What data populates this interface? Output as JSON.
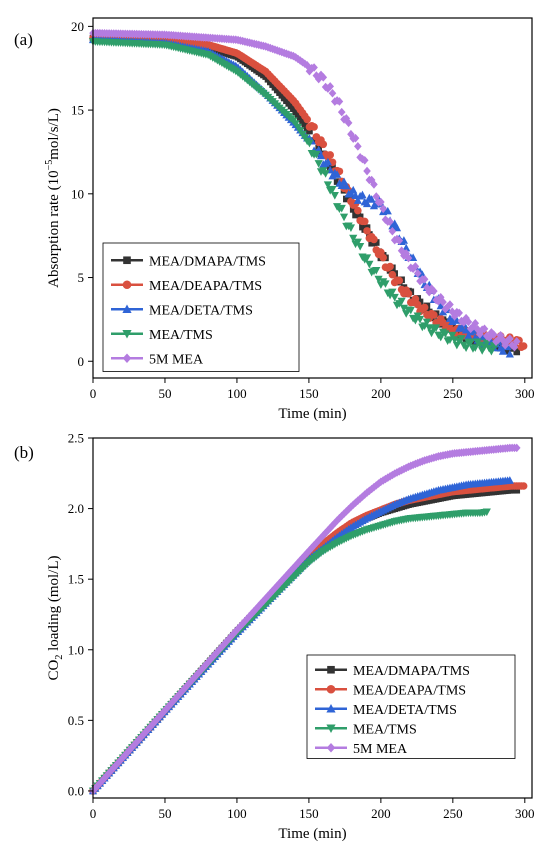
{
  "colors": {
    "MEA/DMAPA/TMS": "#333333",
    "MEA/DEAPA/TMS": "#d9503f",
    "MEA/DETA/TMS": "#2f64d6",
    "MEA/TMS": "#2f9e6a",
    "5M MEA": "#b47ce0"
  },
  "markers": {
    "MEA/DMAPA/TMS": "square",
    "MEA/DEAPA/TMS": "circle",
    "MEA/DETA/TMS": "triangle-up",
    "MEA/TMS": "triangle-down",
    "5M MEA": "diamond"
  },
  "chart_data": [
    {
      "type": "scatter",
      "panel_label": "(a)",
      "xlabel": "Time (min)",
      "ylabel_parts": [
        "Absorption rate (10",
        "−5",
        "mol/s/L)"
      ],
      "xlim": [
        0,
        305
      ],
      "ylim": [
        -1,
        20.5
      ],
      "xticks": [
        0,
        50,
        100,
        150,
        200,
        250,
        300
      ],
      "yticks": [
        0,
        5,
        10,
        15,
        20
      ],
      "legend_position": "bottom-left",
      "series": [
        {
          "name": "MEA/DMAPA/TMS",
          "x": [
            0,
            50,
            80,
            100,
            120,
            140,
            150,
            160,
            170,
            180,
            190,
            200,
            210,
            220,
            230,
            240,
            250,
            260,
            270,
            280,
            290,
            295
          ],
          "y": [
            19.3,
            19.0,
            18.7,
            18.2,
            17.0,
            15.0,
            13.7,
            12.3,
            10.9,
            9.3,
            7.8,
            6.4,
            5.1,
            4.0,
            3.2,
            2.5,
            1.9,
            1.5,
            1.2,
            1.0,
            0.8,
            0.8
          ]
        },
        {
          "name": "MEA/DEAPA/TMS",
          "x": [
            0,
            50,
            80,
            100,
            120,
            140,
            150,
            160,
            170,
            180,
            190,
            200,
            210,
            220,
            230,
            240,
            250,
            260,
            270,
            280,
            290,
            300
          ],
          "y": [
            19.3,
            19.1,
            18.9,
            18.4,
            17.3,
            15.5,
            14.3,
            12.8,
            11.3,
            9.6,
            7.9,
            6.3,
            4.9,
            3.8,
            3.0,
            2.4,
            1.9,
            1.6,
            1.4,
            1.3,
            1.2,
            1.0
          ]
        },
        {
          "name": "MEA/DETA/TMS",
          "x": [
            0,
            50,
            80,
            100,
            120,
            140,
            150,
            160,
            170,
            180,
            190,
            200,
            210,
            220,
            230,
            240,
            250,
            260,
            270,
            280,
            290
          ],
          "y": [
            19.2,
            19.0,
            18.5,
            17.6,
            16.0,
            14.2,
            13.2,
            12.0,
            10.9,
            10.0,
            9.6,
            9.4,
            8.0,
            6.3,
            4.8,
            3.5,
            2.5,
            1.8,
            1.3,
            1.0,
            0.6
          ]
        },
        {
          "name": "MEA/TMS",
          "x": [
            0,
            50,
            80,
            100,
            120,
            140,
            150,
            160,
            170,
            180,
            190,
            200,
            210,
            220,
            230,
            240,
            250,
            260,
            270,
            280
          ],
          "y": [
            19.1,
            18.9,
            18.3,
            17.3,
            15.9,
            14.3,
            13.0,
            11.3,
            9.4,
            7.6,
            6.0,
            4.8,
            3.7,
            2.9,
            2.2,
            1.7,
            1.3,
            1.0,
            0.9,
            0.8
          ]
        },
        {
          "name": "5M MEA",
          "x": [
            0,
            50,
            100,
            120,
            140,
            150,
            160,
            170,
            180,
            190,
            200,
            210,
            220,
            230,
            240,
            250,
            260,
            270,
            280,
            290,
            295
          ],
          "y": [
            19.6,
            19.5,
            19.2,
            18.8,
            18.2,
            17.6,
            16.8,
            15.5,
            13.6,
            11.5,
            9.3,
            7.4,
            5.9,
            4.7,
            3.7,
            3.0,
            2.3,
            1.8,
            1.4,
            1.1,
            1.0
          ]
        }
      ]
    },
    {
      "type": "scatter",
      "panel_label": "(b)",
      "xlabel": "Time (min)",
      "ylabel_parts": [
        "CO",
        "2",
        " loading (mol/L)"
      ],
      "xlim": [
        0,
        305
      ],
      "ylim": [
        -0.05,
        2.5
      ],
      "xticks": [
        0,
        50,
        100,
        150,
        200,
        250,
        300
      ],
      "yticks": [
        0.0,
        0.5,
        1.0,
        1.5,
        2.0,
        2.5
      ],
      "ytick_labels": [
        "0.0",
        "0.5",
        "1.0",
        "1.5",
        "2.0",
        "2.5"
      ],
      "legend_position": "bottom-right",
      "series": [
        {
          "name": "MEA/DMAPA/TMS",
          "x": [
            0,
            50,
            100,
            150,
            160,
            170,
            180,
            190,
            200,
            210,
            220,
            230,
            240,
            250,
            260,
            270,
            280,
            290,
            295
          ],
          "y": [
            0.0,
            0.565,
            1.13,
            1.66,
            1.74,
            1.82,
            1.88,
            1.93,
            1.97,
            2.0,
            2.03,
            2.05,
            2.07,
            2.09,
            2.1,
            2.11,
            2.12,
            2.13,
            2.13
          ]
        },
        {
          "name": "MEA/DEAPA/TMS",
          "x": [
            0,
            50,
            100,
            150,
            160,
            170,
            180,
            190,
            200,
            210,
            220,
            230,
            240,
            250,
            260,
            270,
            280,
            290,
            300
          ],
          "y": [
            0.0,
            0.565,
            1.13,
            1.67,
            1.75,
            1.83,
            1.9,
            1.95,
            1.99,
            2.03,
            2.06,
            2.08,
            2.1,
            2.12,
            2.13,
            2.14,
            2.15,
            2.16,
            2.16
          ]
        },
        {
          "name": "MEA/DETA/TMS",
          "x": [
            0,
            50,
            100,
            150,
            160,
            170,
            180,
            190,
            200,
            210,
            220,
            230,
            240,
            250,
            260,
            270,
            280,
            290
          ],
          "y": [
            0.0,
            0.565,
            1.12,
            1.64,
            1.72,
            1.8,
            1.87,
            1.93,
            1.98,
            2.03,
            2.07,
            2.1,
            2.13,
            2.15,
            2.17,
            2.18,
            2.19,
            2.2
          ]
        },
        {
          "name": "MEA/TMS",
          "x": [
            0,
            50,
            100,
            150,
            160,
            170,
            180,
            190,
            200,
            210,
            220,
            230,
            240,
            250,
            260,
            270,
            275
          ],
          "y": [
            0.0,
            0.565,
            1.12,
            1.62,
            1.7,
            1.76,
            1.81,
            1.85,
            1.88,
            1.91,
            1.93,
            1.94,
            1.95,
            1.96,
            1.97,
            1.97,
            1.98
          ]
        },
        {
          "name": "5M MEA",
          "x": [
            0,
            50,
            100,
            150,
            160,
            170,
            180,
            190,
            200,
            210,
            220,
            230,
            240,
            250,
            260,
            270,
            280,
            290,
            295
          ],
          "y": [
            0.0,
            0.57,
            1.14,
            1.7,
            1.81,
            1.92,
            2.02,
            2.11,
            2.19,
            2.25,
            2.3,
            2.34,
            2.37,
            2.39,
            2.4,
            2.41,
            2.42,
            2.43,
            2.43
          ]
        }
      ]
    }
  ]
}
